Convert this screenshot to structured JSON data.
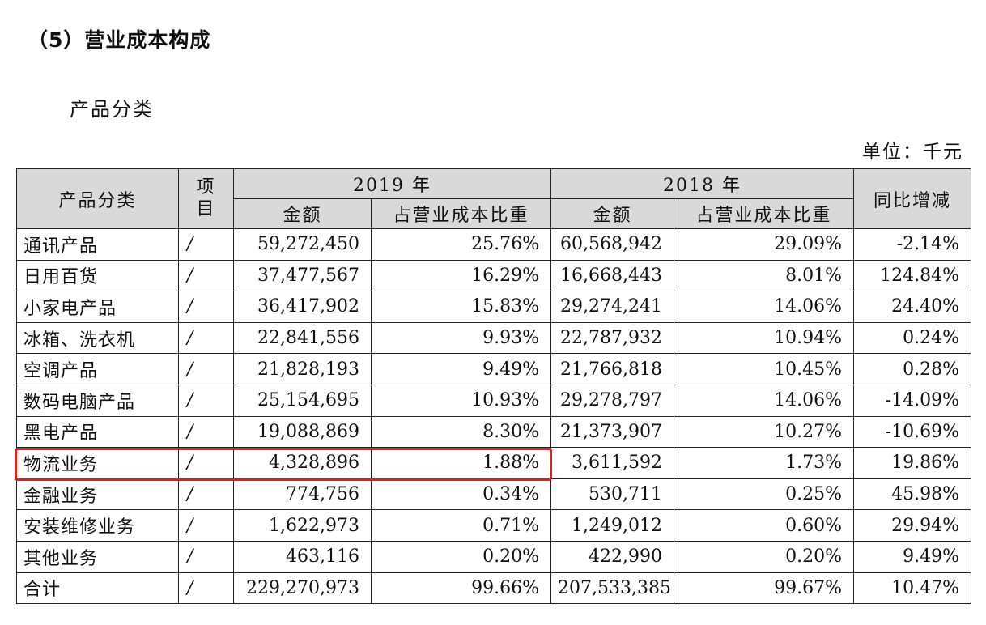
{
  "section_title": "（5）营业成本构成",
  "subtitle": "产品分类",
  "unit_label": "单位：千元",
  "header": {
    "category": "产品分类",
    "item_line1": "项",
    "item_line2": "目",
    "year_2019": "2019 年",
    "year_2018": "2018 年",
    "yoy": "同比增减",
    "amount_2019": "金额",
    "share_2019": "占营业成本比重",
    "amount_2018": "金额",
    "share_2018": "占营业成本比重"
  },
  "rows": [
    {
      "category": "通讯产品",
      "item": "/",
      "amount_2019": "59,272,450",
      "share_2019": "25.76%",
      "amount_2018": "60,568,942",
      "share_2018": "29.09%",
      "yoy": "-2.14%"
    },
    {
      "category": "日用百货",
      "item": "/",
      "amount_2019": "37,477,567",
      "share_2019": "16.29%",
      "amount_2018": "16,668,443",
      "share_2018": "8.01%",
      "yoy": "124.84%"
    },
    {
      "category": "小家电产品",
      "item": "/",
      "amount_2019": "36,417,902",
      "share_2019": "15.83%",
      "amount_2018": "29,274,241",
      "share_2018": "14.06%",
      "yoy": "24.40%"
    },
    {
      "category": "冰箱、洗衣机",
      "item": "/",
      "amount_2019": "22,841,556",
      "share_2019": "9.93%",
      "amount_2018": "22,787,932",
      "share_2018": "10.94%",
      "yoy": "0.24%"
    },
    {
      "category": "空调产品",
      "item": "/",
      "amount_2019": "21,828,193",
      "share_2019": "9.49%",
      "amount_2018": "21,766,818",
      "share_2018": "10.45%",
      "yoy": "0.28%"
    },
    {
      "category": "数码电脑产品",
      "item": "/",
      "amount_2019": "25,154,695",
      "share_2019": "10.93%",
      "amount_2018": "29,278,797",
      "share_2018": "14.06%",
      "yoy": "-14.09%"
    },
    {
      "category": "黑电产品",
      "item": "/",
      "amount_2019": "19,088,869",
      "share_2019": "8.30%",
      "amount_2018": "21,373,907",
      "share_2018": "10.27%",
      "yoy": "-10.69%"
    },
    {
      "category": "物流业务",
      "item": "/",
      "amount_2019": "4,328,896",
      "share_2019": "1.88%",
      "amount_2018": "3,611,592",
      "share_2018": "1.73%",
      "yoy": "19.86%"
    },
    {
      "category": "金融业务",
      "item": "/",
      "amount_2019": "774,756",
      "share_2019": "0.34%",
      "amount_2018": "530,711",
      "share_2018": "0.25%",
      "yoy": "45.98%"
    },
    {
      "category": "安装维修业务",
      "item": "/",
      "amount_2019": "1,622,973",
      "share_2019": "0.71%",
      "amount_2018": "1,249,012",
      "share_2018": "0.60%",
      "yoy": "29.94%"
    },
    {
      "category": "其他业务",
      "item": "/",
      "amount_2019": "463,116",
      "share_2019": "0.20%",
      "amount_2018": "422,990",
      "share_2018": "0.20%",
      "yoy": "9.49%"
    },
    {
      "category": "合计",
      "item": "/",
      "amount_2019": "229,270,973",
      "share_2019": "99.66%",
      "amount_2018": "207,533,385",
      "share_2018": "99.67%",
      "yoy": "10.47%"
    }
  ],
  "highlighted_row_index": 7,
  "colors": {
    "highlight_border": "#e02020",
    "header_bg": "#d9d9d9"
  }
}
